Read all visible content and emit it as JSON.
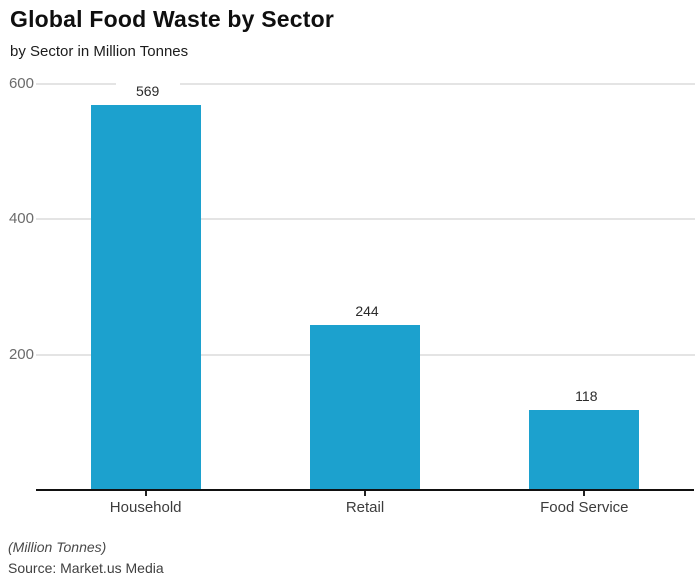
{
  "title": "Global Food Waste by Sector",
  "subtitle": "by Sector in Million Tonnes",
  "footer": {
    "unit_note": "(Million Tonnes)",
    "source": "Source: Market.us Media"
  },
  "colors": {
    "bar": "#1CA1CE",
    "grid": "#E4E4E4",
    "axis": "#111111",
    "tick_mark": "#222222",
    "tick_label": "#6B6B6B",
    "value_label": "#2B2B2B",
    "category_label": "#3C3C3C"
  },
  "chart_data": {
    "type": "bar",
    "title": "Global Food Waste by Sector",
    "subtitle": "by Sector in Million Tonnes",
    "categories": [
      "Household",
      "Retail",
      "Food Service"
    ],
    "values": [
      569,
      244,
      118
    ],
    "xlabel": "",
    "ylabel": "(Million Tonnes)",
    "ylim": [
      0,
      600
    ],
    "yticks": [
      200,
      400,
      600
    ],
    "grid": true,
    "legend": false,
    "value_labels_shown": true,
    "source": "Source: Market.us Media"
  }
}
